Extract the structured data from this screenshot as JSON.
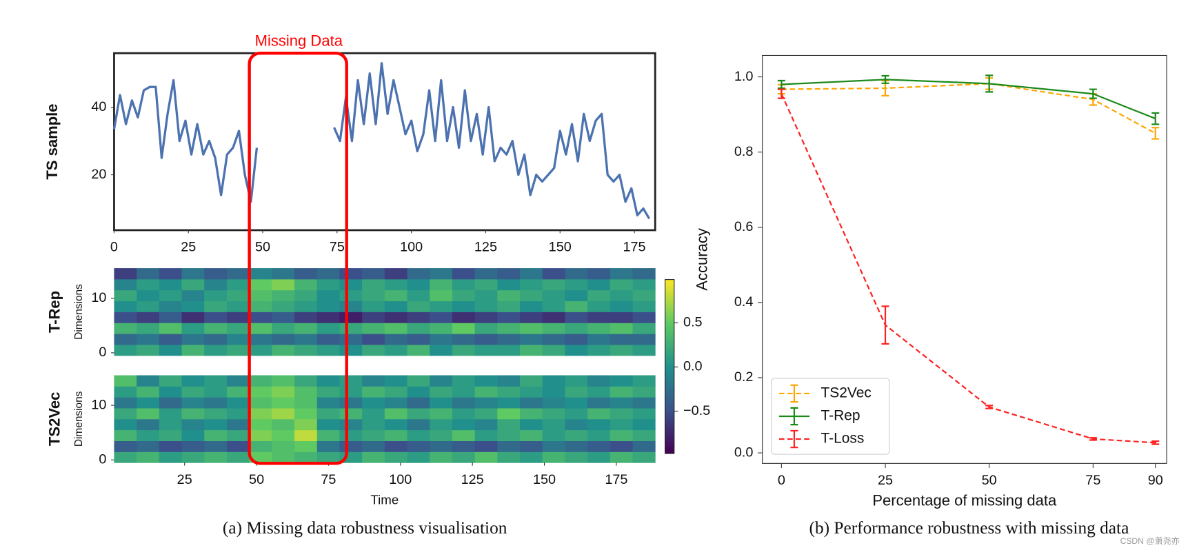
{
  "figure": {
    "annotation": "Missing Data",
    "caption_a": "(a) Missing data robustness visualisation",
    "caption_b": "(b) Performance robustness with  missing data",
    "watermark": "CSDN @萧尧亦"
  },
  "chart_data": [
    {
      "type": "line",
      "ylabel": "TS sample",
      "frame": true,
      "xlim": [
        0,
        182
      ],
      "xticks": [
        0,
        25,
        50,
        75,
        100,
        125,
        150,
        175
      ],
      "ylim": [
        3.6,
        56
      ],
      "yticks": [
        20,
        40
      ],
      "x": [
        0,
        2,
        4,
        6,
        8,
        10,
        12,
        14,
        16,
        18,
        20,
        22,
        24,
        26,
        28,
        30,
        32,
        34,
        36,
        38,
        40,
        42,
        44,
        46,
        48,
        50,
        52,
        54,
        56,
        58,
        60,
        62,
        64,
        66,
        68,
        70,
        72,
        74,
        76,
        78,
        80,
        82,
        84,
        86,
        88,
        90,
        92,
        94,
        96,
        98,
        100,
        102,
        104,
        106,
        108,
        110,
        112,
        114,
        116,
        118,
        120,
        122,
        124,
        126,
        128,
        130,
        132,
        134,
        136,
        138,
        140,
        142,
        144,
        146,
        148,
        150,
        152,
        154,
        156,
        158,
        160,
        162,
        164,
        166,
        168,
        170,
        172,
        174,
        176,
        178,
        180
      ],
      "series": [
        {
          "color": "#4c72b0",
          "linestyle": "solid",
          "values": [
            33.5,
            43.6,
            35,
            42,
            37,
            45,
            46,
            46,
            25,
            38,
            48,
            30,
            36,
            26,
            35,
            26,
            30,
            25,
            14,
            26,
            28,
            33,
            20,
            12,
            28,
            null,
            null,
            null,
            null,
            null,
            null,
            null,
            null,
            null,
            null,
            null,
            null,
            34,
            30,
            43,
            30,
            48,
            35,
            50,
            35,
            53,
            38,
            48,
            40,
            32,
            36,
            27,
            32,
            45,
            30,
            48,
            30,
            40,
            28,
            45,
            30,
            38,
            26,
            40,
            24,
            28,
            26,
            30,
            20,
            26,
            14,
            20,
            18,
            20,
            22,
            33,
            26,
            35,
            24,
            38,
            30,
            36,
            38,
            20,
            18,
            20,
            12,
            16,
            8,
            10,
            7
          ]
        }
      ]
    },
    {
      "type": "heatmap",
      "title": "T-Rep",
      "ylabel": "Dimensions",
      "colormap": "viridis",
      "xlim": [
        0.5,
        188.5
      ],
      "ylim": [
        -0.5,
        15.5
      ],
      "yticks": [
        0,
        10
      ],
      "values": [
        [
          0.1,
          0.2,
          0.0,
          0.3,
          0.1,
          0.2,
          0.1,
          0.3,
          0.2,
          0.1,
          0.0,
          0.2,
          0.1,
          0.3,
          0.0,
          0.2,
          0.1,
          0.1,
          0.3,
          0.2,
          0.0,
          0.1,
          0.2,
          0.1
        ],
        [
          -0.3,
          -0.2,
          -0.4,
          -0.2,
          -0.3,
          -0.1,
          -0.2,
          -0.3,
          -0.2,
          -0.4,
          -0.3,
          -0.5,
          -0.3,
          -0.4,
          -0.2,
          -0.3,
          -0.4,
          -0.3,
          -0.2,
          -0.3,
          -0.4,
          -0.2,
          -0.3,
          -0.3
        ],
        [
          0.3,
          0.2,
          0.4,
          0.1,
          0.3,
          0.2,
          0.4,
          0.2,
          0.3,
          0.1,
          0.2,
          0.3,
          0.4,
          0.2,
          0.3,
          0.5,
          0.2,
          0.3,
          0.4,
          0.3,
          0.2,
          0.3,
          0.4,
          0.2
        ],
        [
          -0.5,
          -0.6,
          -0.4,
          -0.7,
          -0.5,
          -0.6,
          -0.5,
          -0.4,
          -0.6,
          -0.7,
          -0.8,
          -0.6,
          -0.7,
          -0.6,
          -0.5,
          -0.7,
          -0.6,
          -0.5,
          -0.6,
          -0.7,
          -0.5,
          -0.6,
          -0.6,
          -0.5
        ],
        [
          0.0,
          0.1,
          -0.1,
          0.0,
          0.2,
          0.1,
          0.3,
          0.2,
          0.1,
          0.0,
          -0.1,
          0.1,
          0.0,
          0.2,
          0.1,
          0.0,
          0.1,
          0.2,
          0.0,
          0.1,
          0.3,
          0.1,
          0.0,
          0.1
        ],
        [
          0.2,
          0.0,
          0.1,
          -0.1,
          0.1,
          0.2,
          0.4,
          0.3,
          0.2,
          0.0,
          0.1,
          0.2,
          0.3,
          0.1,
          0.4,
          0.2,
          0.1,
          0.3,
          0.2,
          0.1,
          0.0,
          0.2,
          0.1,
          0.2
        ],
        [
          -0.1,
          0.1,
          0.0,
          0.2,
          -0.1,
          0.1,
          0.5,
          0.6,
          0.3,
          0.1,
          0.0,
          0.2,
          0.1,
          0.0,
          0.3,
          0.1,
          0.2,
          0.0,
          0.1,
          0.2,
          0.1,
          0.0,
          0.2,
          0.1
        ],
        [
          -0.6,
          -0.3,
          -0.5,
          -0.2,
          -0.4,
          -0.3,
          -0.1,
          -0.2,
          -0.4,
          -0.3,
          -0.5,
          -0.4,
          -0.6,
          -0.3,
          -0.2,
          -0.5,
          -0.3,
          -0.4,
          -0.2,
          -0.5,
          -0.3,
          -0.4,
          -0.2,
          -0.3
        ]
      ]
    },
    {
      "type": "heatmap",
      "title": "TS2Vec",
      "ylabel": "Dimensions",
      "xlabel": "Time",
      "colormap": "viridis",
      "xlim": [
        0.5,
        188.5
      ],
      "xticks": [
        25,
        50,
        75,
        100,
        125,
        150,
        175
      ],
      "ylim": [
        -0.5,
        15.5
      ],
      "yticks": [
        0,
        10
      ],
      "values": [
        [
          0.2,
          0.3,
          0.1,
          0.2,
          0.3,
          0.2,
          0.5,
          0.4,
          0.3,
          0.2,
          0.1,
          0.3,
          0.2,
          0.1,
          0.3,
          0.2,
          0.4,
          0.2,
          0.1,
          0.3,
          0.2,
          0.1,
          0.3,
          0.2
        ],
        [
          -0.4,
          -0.3,
          -0.5,
          -0.4,
          -0.3,
          -0.5,
          0.3,
          0.4,
          0.5,
          -0.2,
          -0.4,
          -0.3,
          -0.5,
          -0.4,
          -0.3,
          -0.4,
          -0.5,
          -0.3,
          -0.4,
          -0.2,
          -0.3,
          -0.4,
          -0.5,
          -0.3
        ],
        [
          0.3,
          0.1,
          0.2,
          0.0,
          0.3,
          0.2,
          0.6,
          0.5,
          0.8,
          0.3,
          0.1,
          0.2,
          0.3,
          0.1,
          0.2,
          0.4,
          0.1,
          0.2,
          0.3,
          0.1,
          0.2,
          0.1,
          0.3,
          0.2
        ],
        [
          0.0,
          -0.2,
          0.1,
          -0.1,
          0.0,
          -0.2,
          0.5,
          0.4,
          0.6,
          0.0,
          -0.1,
          0.1,
          0.0,
          -0.2,
          0.1,
          0.0,
          -0.1,
          0.2,
          0.0,
          0.1,
          -0.1,
          0.0,
          0.1,
          0.0
        ],
        [
          0.2,
          0.4,
          0.1,
          0.3,
          0.2,
          0.1,
          0.6,
          0.7,
          0.5,
          0.2,
          0.3,
          0.1,
          0.4,
          0.2,
          0.3,
          0.1,
          0.2,
          0.5,
          0.3,
          0.2,
          0.1,
          0.3,
          0.2,
          0.1
        ],
        [
          -0.2,
          0.0,
          -0.3,
          -0.1,
          -0.2,
          0.0,
          0.4,
          0.5,
          0.4,
          -0.1,
          -0.2,
          0.0,
          -0.1,
          -0.3,
          0.0,
          -0.2,
          -0.1,
          0.0,
          -0.2,
          -0.1,
          0.0,
          -0.2,
          -0.1,
          -0.2
        ],
        [
          0.1,
          0.3,
          0.0,
          0.2,
          0.1,
          0.3,
          0.5,
          0.6,
          0.4,
          0.2,
          0.1,
          0.3,
          0.2,
          0.0,
          0.2,
          0.1,
          0.3,
          0.2,
          0.1,
          0.0,
          0.2,
          0.1,
          0.3,
          0.2
        ],
        [
          0.4,
          -0.1,
          0.2,
          0.0,
          0.1,
          -0.1,
          0.3,
          0.4,
          0.2,
          0.0,
          0.1,
          -0.1,
          0.0,
          0.2,
          -0.1,
          0.1,
          0.0,
          -0.1,
          0.2,
          0.0,
          0.1,
          -0.1,
          0.0,
          0.1
        ]
      ]
    },
    {
      "type": "colorbar",
      "colormap": "viridis",
      "ylim": [
        -0.98,
        0.99
      ],
      "yticks": [
        0.5,
        {
          "value": 0,
          "label": "0.0"
        },
        {
          "value": -0.5,
          "label": "−0.5"
        }
      ]
    },
    {
      "type": "line",
      "xlabel": "Percentage of missing data",
      "ylabel": "Accuracy",
      "frame": true,
      "legend": "lower left",
      "xlim": [
        -4.6,
        92.7
      ],
      "xticks": [
        0,
        25,
        50,
        75,
        90
      ],
      "ylim": [
        -0.028,
        1.057
      ],
      "yticks": [
        {
          "value": 0,
          "label": "0.0"
        },
        0.2,
        0.4,
        0.6,
        0.8,
        {
          "value": 1,
          "label": "1.0"
        }
      ],
      "x": [
        0,
        25,
        50,
        75,
        90
      ],
      "series": [
        {
          "name": "TS2Vec",
          "color": "#ffa500",
          "linestyle": "dashed",
          "values": [
            0.967,
            0.97,
            0.982,
            0.94,
            0.85
          ],
          "errors": [
            0.012,
            0.02,
            0.015,
            0.015,
            0.015
          ]
        },
        {
          "name": "T-Rep",
          "color": "#1a8a1a",
          "linestyle": "solid",
          "values": [
            0.98,
            0.993,
            0.982,
            0.955,
            0.889
          ],
          "errors": [
            0.01,
            0.01,
            0.022,
            0.012,
            0.015
          ]
        },
        {
          "name": "T-Loss",
          "color": "#ff2020",
          "linestyle": "dashed",
          "values": [
            0.955,
            0.34,
            0.122,
            0.037,
            0.027
          ],
          "errors": [
            0.012,
            0.05,
            0.004,
            0.003,
            0.004
          ]
        }
      ]
    }
  ]
}
